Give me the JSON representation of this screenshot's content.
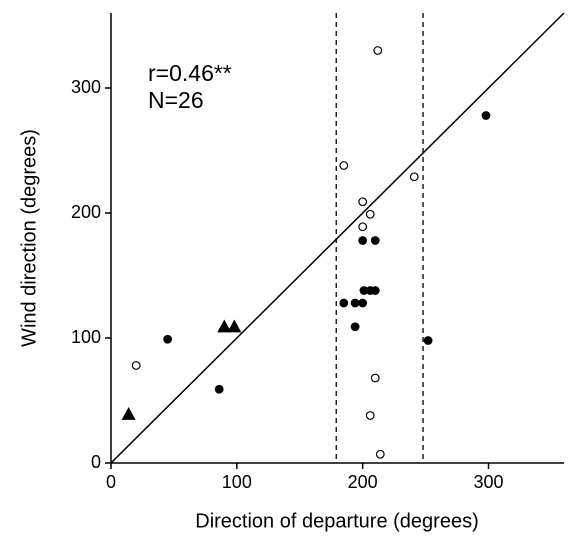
{
  "chart_data": {
    "type": "scatter",
    "x_label": "Direction of departure (degrees)",
    "y_label": "Wind direction (degrees)",
    "annotations": [
      "r=0.46**",
      "N=26"
    ],
    "xlim": [
      0,
      360
    ],
    "ylim": [
      0,
      360
    ],
    "xticks": [
      0,
      100,
      200,
      300
    ],
    "yticks": [
      0,
      100,
      200,
      300
    ],
    "series": [
      {
        "marker": "circle",
        "color": "#000000",
        "fill": "#000000",
        "x": [
          45,
          86,
          252,
          298,
          200,
          210,
          185,
          194,
          200,
          194,
          201,
          206,
          210
        ],
        "y": [
          99,
          59,
          98,
          278,
          178,
          178,
          128,
          128,
          128,
          109,
          138,
          138,
          138
        ]
      },
      {
        "marker": "circle",
        "color": "#000000",
        "fill": "#ffffff",
        "x": [
          20,
          212,
          185,
          241,
          200,
          206,
          200,
          210,
          206,
          214
        ],
        "y": [
          78,
          330,
          238,
          229,
          209,
          199,
          189,
          68,
          38,
          7
        ]
      },
      {
        "marker": "triangle",
        "color": "#000000",
        "fill": "#000000",
        "x": [
          14,
          90,
          98
        ],
        "y": [
          39,
          109,
          109
        ]
      }
    ],
    "fit_line": {
      "x": [
        0,
        360
      ],
      "y": [
        0,
        360
      ]
    },
    "vlines": [
      179,
      248
    ]
  }
}
